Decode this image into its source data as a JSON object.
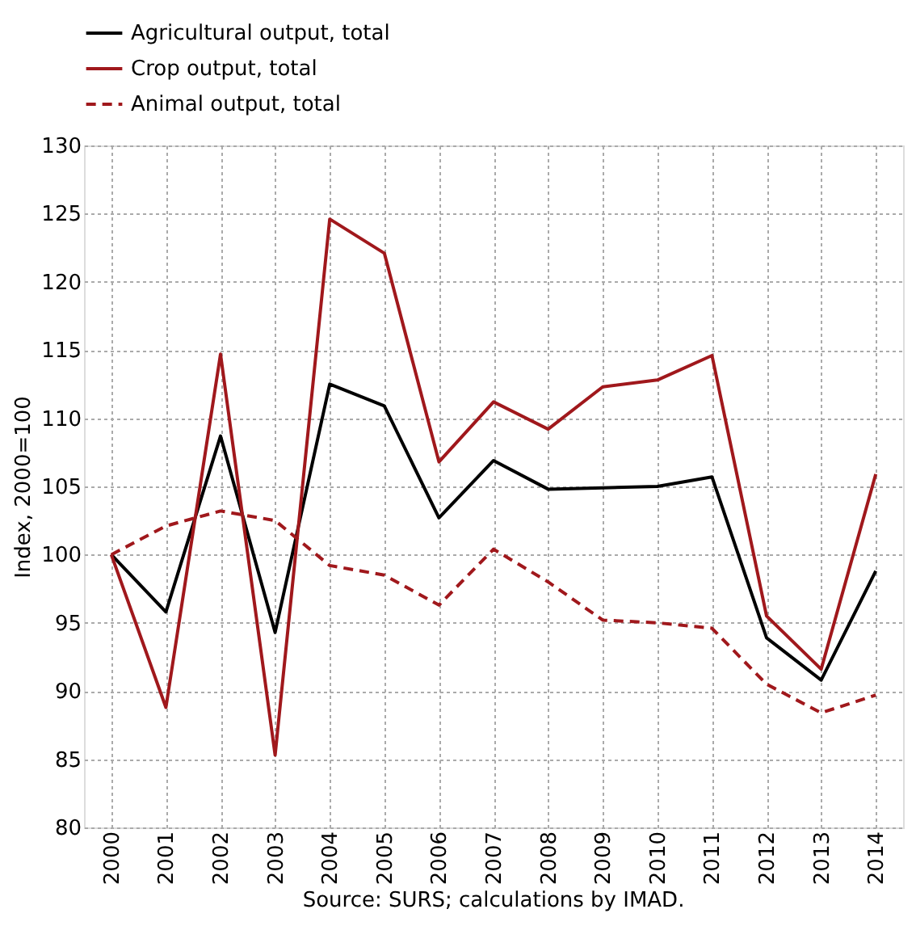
{
  "chart_data": {
    "type": "line",
    "ylabel": "Index, 2000=100",
    "categories": [
      "2000",
      "2001",
      "2002",
      "2003",
      "2004",
      "2005",
      "2006",
      "2007",
      "2008",
      "2009",
      "2010",
      "2011",
      "2012",
      "2013",
      "2014"
    ],
    "series": [
      {
        "name": "Agricultural output, total",
        "color": "#000000",
        "line_style": "solid",
        "values": [
          100,
          95.8,
          108.7,
          94.3,
          112.5,
          110.9,
          102.7,
          106.9,
          104.8,
          104.9,
          105.0,
          105.7,
          93.9,
          90.8,
          98.8
        ]
      },
      {
        "name": "Crop output, total",
        "color": "#a0181c",
        "line_style": "solid",
        "values": [
          100,
          88.8,
          114.7,
          85.3,
          124.6,
          122.1,
          106.8,
          111.2,
          109.2,
          112.3,
          112.8,
          114.6,
          95.5,
          91.6,
          105.9
        ]
      },
      {
        "name": "Animal output, total",
        "color": "#a0181c",
        "line_style": "dashed",
        "values": [
          100,
          102.1,
          103.2,
          102.5,
          99.2,
          98.5,
          96.3,
          100.4,
          98.0,
          95.2,
          95.0,
          94.6,
          90.5,
          88.4,
          89.7
        ]
      }
    ],
    "ylim": [
      80,
      130
    ],
    "yticks": [
      80,
      85,
      90,
      95,
      100,
      105,
      110,
      115,
      120,
      125,
      130
    ],
    "grid": true,
    "legend": "top",
    "annotations": [
      "Source: SURS; calculations by IMAD."
    ]
  }
}
